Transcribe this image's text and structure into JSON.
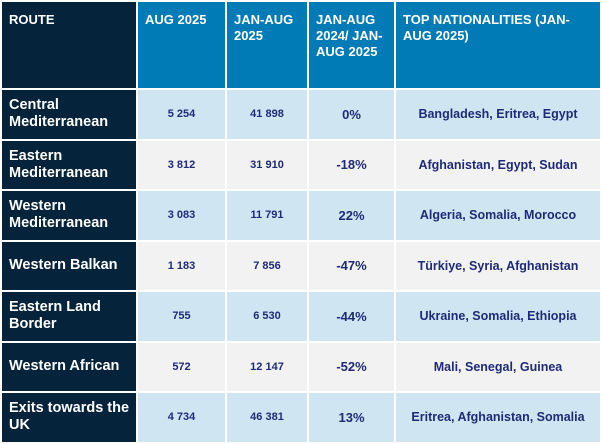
{
  "headers": [
    "ROUTE",
    "AUG 2025",
    "JAN-AUG 2025",
    "JAN-AUG 2024/ JAN-AUG 2025",
    "TOP NATIONALITIES (JAN-AUG 2025)"
  ],
  "rows": [
    {
      "route": "Central Mediterranean",
      "aug": "5 254",
      "janaug": "41 898",
      "change": "0%",
      "nationalities": "Bangladesh, Eritrea, Egypt"
    },
    {
      "route": "Eastern Mediterranean",
      "aug": "3 812",
      "janaug": "31 910",
      "change": "-18%",
      "nationalities": "Afghanistan, Egypt, Sudan"
    },
    {
      "route": "Western Mediterranean",
      "aug": "3 083",
      "janaug": "11 791",
      "change": "22%",
      "nationalities": "Algeria, Somalia, Morocco"
    },
    {
      "route": "Western Balkan",
      "aug": "1 183",
      "janaug": "7 856",
      "change": "-47%",
      "nationalities": "Türkiye, Syria, Afghanistan"
    },
    {
      "route": "Eastern Land Border",
      "aug": "755",
      "janaug": "6 530",
      "change": "-44%",
      "nationalities": "Ukraine, Somalia, Ethiopia"
    },
    {
      "route": "Western African",
      "aug": "572",
      "janaug": "12 147",
      "change": "-52%",
      "nationalities": "Mali, Senegal, Guinea"
    },
    {
      "route": "Exits towards the UK",
      "aug": "4 734",
      "janaug": "46 381",
      "change": "13%",
      "nationalities": "Eritrea, Afghanistan, Somalia"
    }
  ]
}
